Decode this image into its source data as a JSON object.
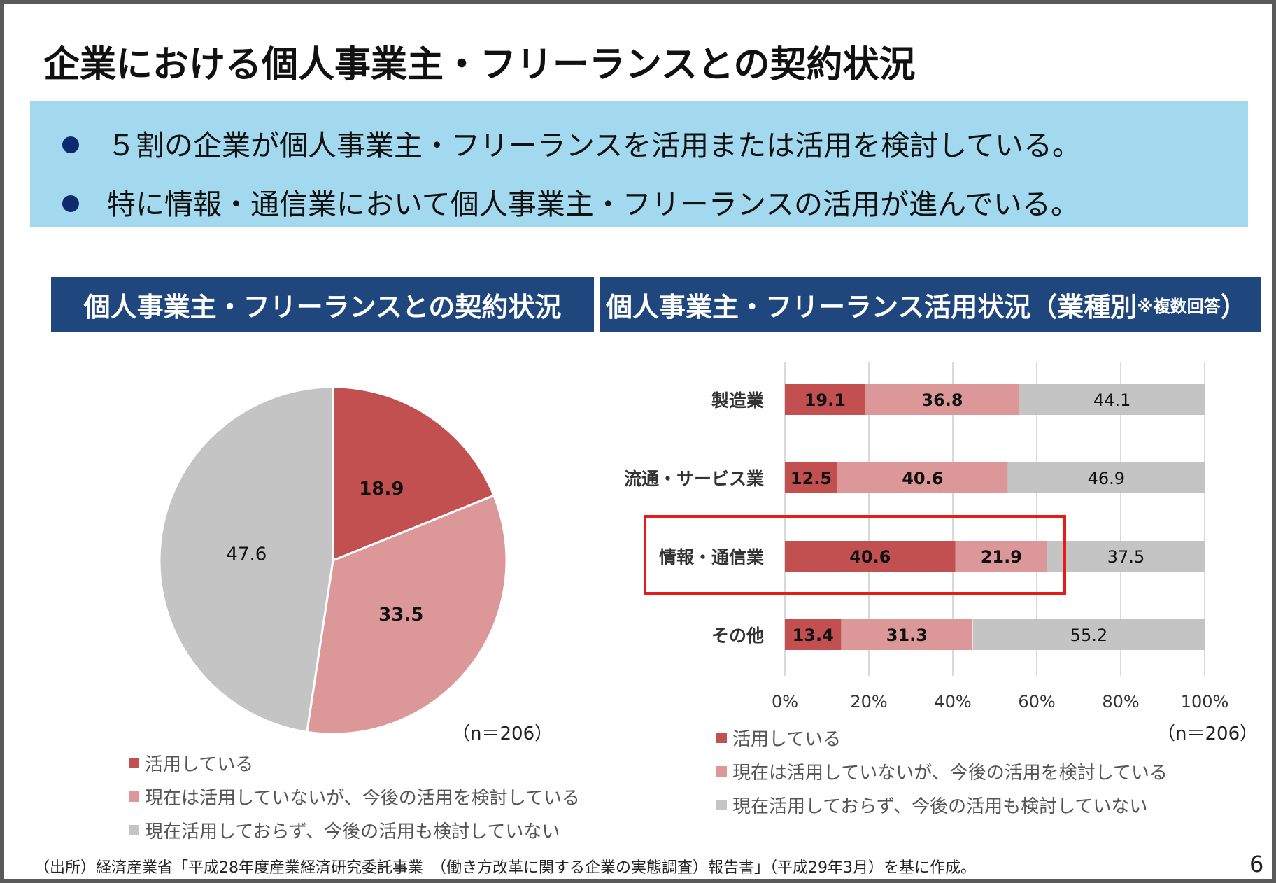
{
  "title": "企業における個人事業主・フリーランスとの契約状況",
  "summary": [
    "５割の企業が個人事業主・フリーランスを活用または活用を検討している。",
    "特に情報・通信業において個人事業主・フリーランスの活用が進んでいる。"
  ],
  "colors": {
    "used": "#c25050",
    "considering": "#dc9898",
    "not_used": "#c4c4c4",
    "header_bg": "#1f467d",
    "summary_bg": "#a3d9ee",
    "highlight": "#e51c1c"
  },
  "legend": [
    "活用している",
    "現在は活用していないが、今後の活用を検討している",
    "現在活用しておらず、今後の活用も検討していない"
  ],
  "pie_panel": {
    "heading": "個人事業主・フリーランスとの契約状況",
    "n_label": "（n＝206）"
  },
  "bar_panel": {
    "heading": "個人事業主・フリーランス活用状況（業種別",
    "heading_note": "※複数回答",
    "heading_close": "）",
    "n_label": "（n＝206）"
  },
  "chart_data": [
    {
      "type": "pie",
      "title": "個人事業主・フリーランスとの契約状況",
      "labels": [
        "活用している",
        "現在は活用していないが、今後の活用を検討している",
        "現在活用しておらず、今後の活用も検討していない"
      ],
      "values": [
        18.9,
        33.5,
        47.6
      ],
      "value_labels": [
        "18.9",
        "33.5",
        "47.6"
      ],
      "legend_position": "bottom-left"
    },
    {
      "type": "bar",
      "orientation": "horizontal",
      "stacked": true,
      "title": "個人事業主・フリーランス活用状況（業種別※複数回答）",
      "categories": [
        "製造業",
        "流通・サービス業",
        "情報・通信業",
        "その他"
      ],
      "series": [
        {
          "name": "活用している",
          "values": [
            19.1,
            12.5,
            40.6,
            13.4
          ],
          "labels": [
            "19.1",
            "12.5",
            "40.6",
            "13.4"
          ]
        },
        {
          "name": "現在は活用していないが、今後の活用を検討している",
          "values": [
            36.8,
            40.6,
            21.9,
            31.3
          ],
          "labels": [
            "36.8",
            "40.6",
            "21.9",
            "31.3"
          ]
        },
        {
          "name": "現在活用しておらず、今後の活用も検討していない",
          "values": [
            44.1,
            46.9,
            37.5,
            55.2
          ],
          "labels": [
            "44.1",
            "46.9",
            "37.5",
            "55.2"
          ]
        }
      ],
      "xlim": [
        0,
        100
      ],
      "xticks": [
        "0%",
        "20%",
        "40%",
        "60%",
        "80%",
        "100%"
      ],
      "grid": true,
      "highlighted_category": "情報・通信業",
      "legend_position": "bottom-left"
    }
  ],
  "source": "（出所）経済産業省「平成28年度産業経済研究委託事業　（働き方改革に関する企業の実態調査）報告書」（平成29年3月）を基に作成。",
  "page_number": "6"
}
